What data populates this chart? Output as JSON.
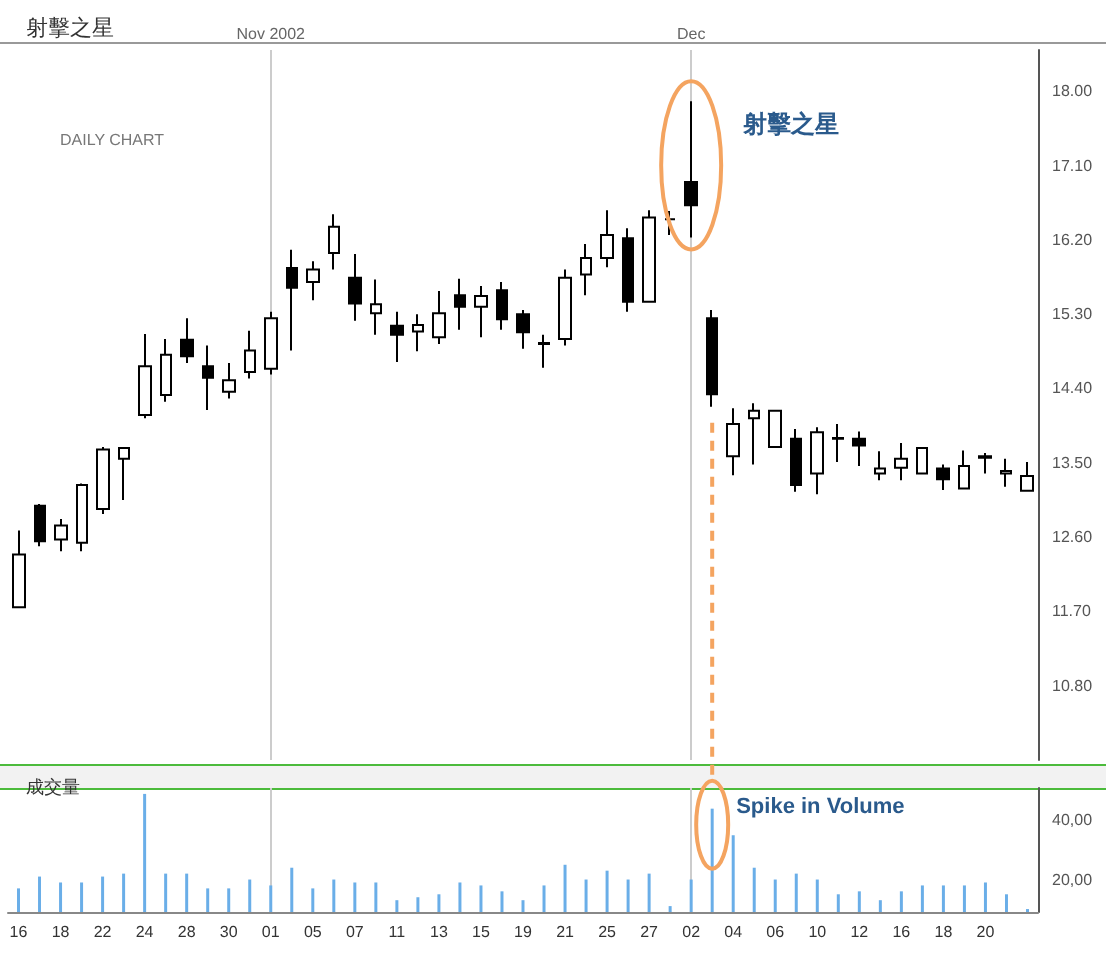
{
  "chart_data": [
    {
      "type": "candlestick",
      "title": "射擊之星",
      "categories": [
        "16",
        null,
        "18",
        null,
        "22",
        null,
        "24",
        null,
        "28",
        null,
        "30",
        null,
        "01",
        null,
        "05",
        null,
        "07",
        null,
        "11",
        null,
        "13",
        null,
        "15",
        null,
        "19",
        null,
        "21",
        null,
        "25",
        null,
        "27",
        null,
        "02",
        null,
        "04",
        null,
        "06",
        null,
        "10",
        null,
        "12",
        null,
        "16",
        null,
        "18",
        null,
        "20",
        null,
        null
      ],
      "color": "#000000",
      "ohlc": [
        [
          11.75,
          12.68,
          11.75,
          12.39
        ],
        [
          12.98,
          13.0,
          12.49,
          12.55
        ],
        [
          12.57,
          12.82,
          12.43,
          12.74
        ],
        [
          12.53,
          13.25,
          12.43,
          13.23
        ],
        [
          12.94,
          13.69,
          12.88,
          13.66
        ],
        [
          13.55,
          13.68,
          13.05,
          13.68
        ],
        [
          14.08,
          15.06,
          14.04,
          14.67
        ],
        [
          14.32,
          15.0,
          14.24,
          14.81
        ],
        [
          14.99,
          15.25,
          14.71,
          14.79
        ],
        [
          14.67,
          14.92,
          14.14,
          14.53
        ],
        [
          14.36,
          14.71,
          14.28,
          14.5
        ],
        [
          14.6,
          15.1,
          14.52,
          14.86
        ],
        [
          14.64,
          15.33,
          14.57,
          15.25
        ],
        [
          15.86,
          16.08,
          14.86,
          15.62
        ],
        [
          15.69,
          15.94,
          15.47,
          15.84
        ],
        [
          16.04,
          16.51,
          15.84,
          16.36
        ],
        [
          15.74,
          16.03,
          15.22,
          15.43
        ],
        [
          15.31,
          15.72,
          15.05,
          15.42
        ],
        [
          15.16,
          15.33,
          14.72,
          15.05
        ],
        [
          15.09,
          15.3,
          14.85,
          15.17
        ],
        [
          15.02,
          15.58,
          14.94,
          15.31
        ],
        [
          15.53,
          15.73,
          15.11,
          15.39
        ],
        [
          15.39,
          15.64,
          15.02,
          15.52
        ],
        [
          15.59,
          15.69,
          15.11,
          15.24
        ],
        [
          15.3,
          15.35,
          14.88,
          15.08
        ],
        [
          14.94,
          15.05,
          14.65,
          14.95
        ],
        [
          15.0,
          15.84,
          14.92,
          15.74
        ],
        [
          15.78,
          16.15,
          15.53,
          15.98
        ],
        [
          15.98,
          16.56,
          15.87,
          16.26
        ],
        [
          16.22,
          16.34,
          15.33,
          15.45
        ],
        [
          15.45,
          16.56,
          15.45,
          16.47
        ],
        [
          16.45,
          16.55,
          16.26,
          16.45
        ],
        [
          16.9,
          17.88,
          16.23,
          16.62
        ],
        [
          15.25,
          15.35,
          14.18,
          14.33
        ],
        [
          13.58,
          14.16,
          13.35,
          13.97
        ],
        [
          14.04,
          14.22,
          13.48,
          14.13
        ],
        [
          13.69,
          14.13,
          13.69,
          14.13
        ],
        [
          13.79,
          13.91,
          13.15,
          13.23
        ],
        [
          13.37,
          13.93,
          13.12,
          13.87
        ],
        [
          13.79,
          13.97,
          13.51,
          13.8
        ],
        [
          13.79,
          13.88,
          13.46,
          13.71
        ],
        [
          13.37,
          13.64,
          13.29,
          13.43
        ],
        [
          13.44,
          13.74,
          13.29,
          13.55
        ],
        [
          13.37,
          13.68,
          13.37,
          13.68
        ],
        [
          13.43,
          13.48,
          13.17,
          13.3
        ],
        [
          13.19,
          13.65,
          13.19,
          13.46
        ],
        [
          13.58,
          13.62,
          13.37,
          13.56
        ],
        [
          13.37,
          13.55,
          13.21,
          13.4
        ],
        [
          13.16,
          13.51,
          13.16,
          13.34
        ]
      ],
      "ylim": [
        9.9,
        18.5
      ],
      "yticks": [
        {
          "value": 10.8,
          "label": "10.80"
        },
        {
          "value": 11.7,
          "label": "11.70"
        },
        {
          "value": 12.6,
          "label": "12.60"
        },
        {
          "value": 13.5,
          "label": "13.50"
        },
        {
          "value": 14.4,
          "label": "14.40"
        },
        {
          "value": 15.3,
          "label": "15.30"
        },
        {
          "value": 16.2,
          "label": "16.20"
        },
        {
          "value": 17.1,
          "label": "17.10"
        },
        {
          "value": 18.0,
          "label": "18.00"
        }
      ],
      "tick_labels": "y",
      "ref_lines": [
        {
          "axis": "x",
          "value": "01",
          "label": "Nov 2002",
          "color": "#cccccc"
        },
        {
          "axis": "x",
          "value": "02",
          "label": "Dec",
          "color": "#cccccc"
        }
      ],
      "annotations": [
        "DAILY CHART",
        {
          "text": "射擊之星",
          "x": "02",
          "y": 17.6
        }
      ]
    },
    {
      "type": "bar",
      "title": "成交量",
      "categories": [
        "16",
        null,
        "18",
        null,
        "22",
        null,
        "24",
        null,
        "28",
        null,
        "30",
        null,
        "01",
        null,
        "05",
        null,
        "07",
        null,
        "11",
        null,
        "13",
        null,
        "15",
        null,
        "19",
        null,
        "21",
        null,
        "25",
        null,
        "27",
        null,
        "02",
        null,
        "04",
        null,
        "06",
        null,
        "10",
        null,
        "12",
        null,
        "16",
        null,
        "18",
        null,
        "20",
        null,
        null
      ],
      "color": "#6aaee8",
      "values": [
        17,
        21,
        19,
        19,
        21,
        22,
        49,
        22,
        22,
        17,
        17,
        20,
        18,
        24,
        17,
        20,
        19,
        19,
        13,
        14,
        15,
        19,
        18,
        16,
        13,
        18,
        25,
        20,
        23,
        20,
        22,
        11,
        20,
        44,
        35,
        24,
        20,
        22,
        20,
        15,
        16,
        13,
        16,
        18,
        18,
        18,
        19,
        15,
        10
      ],
      "ylim": [
        9,
        51
      ],
      "yticks": [
        {
          "value": 20,
          "label": "20,00"
        },
        {
          "value": 40,
          "label": "40,00"
        }
      ],
      "ref_lines": [
        {
          "axis": "x",
          "value": "01",
          "color": "#cccccc"
        },
        {
          "axis": "x",
          "value": "02",
          "color": "#cccccc"
        }
      ],
      "annotations": [
        "Spike in Volume"
      ]
    }
  ]
}
